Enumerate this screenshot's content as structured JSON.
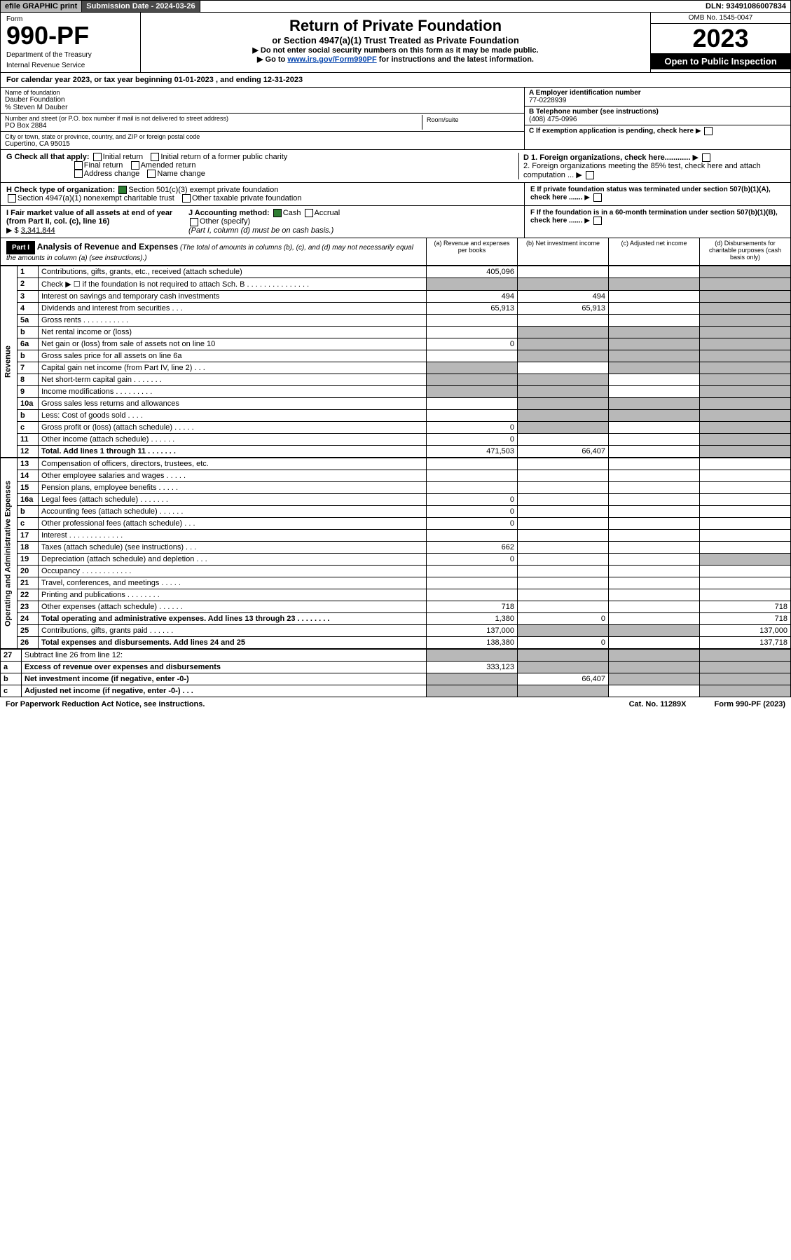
{
  "topbar": {
    "efile": "efile GRAPHIC print",
    "submission": "Submission Date - 2024-03-26",
    "dln": "DLN: 93491086007834"
  },
  "header": {
    "form_label": "Form",
    "form_code": "990-PF",
    "dept1": "Department of the Treasury",
    "dept2": "Internal Revenue Service",
    "title": "Return of Private Foundation",
    "subtitle": "or Section 4947(a)(1) Trust Treated as Private Foundation",
    "note1": "▶ Do not enter social security numbers on this form as it may be made public.",
    "note2_pre": "▶ Go to ",
    "note2_link": "www.irs.gov/Form990PF",
    "note2_post": " for instructions and the latest information.",
    "omb": "OMB No. 1545-0047",
    "year": "2023",
    "open": "Open to Public Inspection"
  },
  "calyear": "For calendar year 2023, or tax year beginning 01-01-2023                        , and ending 12-31-2023",
  "entity": {
    "name_lbl": "Name of foundation",
    "name": "Dauber Foundation",
    "care_of": "% Steven M Dauber",
    "addr_lbl": "Number and street (or P.O. box number if mail is not delivered to street address)",
    "addr": "PO Box 2884",
    "room_lbl": "Room/suite",
    "city_lbl": "City or town, state or province, country, and ZIP or foreign postal code",
    "city": "Cupertino, CA  95015",
    "a_lbl": "A Employer identification number",
    "a_val": "77-0228939",
    "b_lbl": "B Telephone number (see instructions)",
    "b_val": "(408) 475-0996",
    "c_lbl": "C If exemption application is pending, check here",
    "d1_lbl": "D 1. Foreign organizations, check here............",
    "d2_lbl": "2. Foreign organizations meeting the 85% test, check here and attach computation ...",
    "e_lbl": "E If private foundation status was terminated under section 507(b)(1)(A), check here .......",
    "f_lbl": "F If the foundation is in a 60-month termination under section 507(b)(1)(B), check here .......",
    "g_lbl": "G Check all that apply:",
    "g_initial": "Initial return",
    "g_initial_former": "Initial return of a former public charity",
    "g_final": "Final return",
    "g_amended": "Amended return",
    "g_addr": "Address change",
    "g_name": "Name change",
    "h_lbl": "H Check type of organization:",
    "h_501": "Section 501(c)(3) exempt private foundation",
    "h_4947": "Section 4947(a)(1) nonexempt charitable trust",
    "h_other": "Other taxable private foundation",
    "i_lbl": "I Fair market value of all assets at end of year (from Part II, col. (c), line 16)",
    "i_val": "3,341,844",
    "j_lbl": "J Accounting method:",
    "j_cash": "Cash",
    "j_accrual": "Accrual",
    "j_other": "Other (specify)",
    "j_note": "(Part I, column (d) must be on cash basis.)"
  },
  "part1": {
    "label": "Part I",
    "title": "Analysis of Revenue and Expenses",
    "title_note": "(The total of amounts in columns (b), (c), and (d) may not necessarily equal the amounts in column (a) (see instructions).)",
    "col_a": "(a)   Revenue and expenses per books",
    "col_b": "(b)   Net investment income",
    "col_c": "(c)   Adjusted net income",
    "col_d": "(d)   Disbursements for charitable purposes (cash basis only)"
  },
  "sections": {
    "revenue": "Revenue",
    "expenses": "Operating and Administrative Expenses"
  },
  "rows": [
    {
      "n": "1",
      "l": "Contributions, gifts, grants, etc., received (attach schedule)",
      "a": "405,096",
      "b": "",
      "c": "",
      "d": "",
      "shade_d": true
    },
    {
      "n": "2",
      "l": "Check ▶ ☐ if the foundation is not required to attach Sch. B    .   .   .   .   .   .   .   .   .   .   .   .   .   .   .",
      "a": "",
      "b": "",
      "c": "",
      "d": "",
      "shade_all": true,
      "shade_d": true
    },
    {
      "n": "3",
      "l": "Interest on savings and temporary cash investments",
      "a": "494",
      "b": "494",
      "c": "",
      "d": "",
      "shade_d": true
    },
    {
      "n": "4",
      "l": "Dividends and interest from securities    .   .   .",
      "a": "65,913",
      "b": "65,913",
      "c": "",
      "d": "",
      "shade_d": true
    },
    {
      "n": "5a",
      "l": "Gross rents    .   .   .   .   .   .   .   .   .   .   .",
      "a": "",
      "b": "",
      "c": "",
      "d": "",
      "shade_d": true
    },
    {
      "n": "b",
      "l": "Net rental income or (loss)",
      "a": "",
      "b": "",
      "c": "",
      "d": "",
      "shade_bcd": true
    },
    {
      "n": "6a",
      "l": "Net gain or (loss) from sale of assets not on line 10",
      "a": "0",
      "b": "",
      "c": "",
      "d": "",
      "shade_bcd": true
    },
    {
      "n": "b",
      "l": "Gross sales price for all assets on line 6a",
      "a": "",
      "b": "",
      "c": "",
      "d": "",
      "shade_bcd": true
    },
    {
      "n": "7",
      "l": "Capital gain net income (from Part IV, line 2)    .   .   .",
      "a": "",
      "b": "",
      "c": "",
      "d": "",
      "shade_a": true,
      "shade_cd": true
    },
    {
      "n": "8",
      "l": "Net short-term capital gain    .   .   .   .   .   .   .",
      "a": "",
      "b": "",
      "c": "",
      "d": "",
      "shade_ab": true,
      "shade_d": true
    },
    {
      "n": "9",
      "l": "Income modifications    .   .   .   .   .   .   .   .   .",
      "a": "",
      "b": "",
      "c": "",
      "d": "",
      "shade_ab": true,
      "shade_d": true
    },
    {
      "n": "10a",
      "l": "Gross sales less returns and allowances",
      "a": "",
      "b": "",
      "c": "",
      "d": "",
      "shade_bcd": true
    },
    {
      "n": "b",
      "l": "Less: Cost of goods sold    .   .   .   .",
      "a": "",
      "b": "",
      "c": "",
      "d": "",
      "shade_bcd": true
    },
    {
      "n": "c",
      "l": "Gross profit or (loss) (attach schedule)    .   .   .   .   .",
      "a": "0",
      "b": "",
      "c": "",
      "d": "",
      "shade_b": true,
      "shade_d": true
    },
    {
      "n": "11",
      "l": "Other income (attach schedule)    .   .   .   .   .   .",
      "a": "0",
      "b": "",
      "c": "",
      "d": "",
      "shade_d": true
    },
    {
      "n": "12",
      "l": "Total. Add lines 1 through 11    .   .   .   .   .   .   .",
      "a": "471,503",
      "b": "66,407",
      "c": "",
      "d": "",
      "bold": true,
      "shade_d": true
    }
  ],
  "exp_rows": [
    {
      "n": "13",
      "l": "Compensation of officers, directors, trustees, etc.",
      "a": "",
      "b": "",
      "c": "",
      "d": ""
    },
    {
      "n": "14",
      "l": "Other employee salaries and wages    .   .   .   .   .",
      "a": "",
      "b": "",
      "c": "",
      "d": ""
    },
    {
      "n": "15",
      "l": "Pension plans, employee benefits    .   .   .   .   .",
      "a": "",
      "b": "",
      "c": "",
      "d": ""
    },
    {
      "n": "16a",
      "l": "Legal fees (attach schedule)    .   .   .   .   .   .   .",
      "a": "0",
      "b": "",
      "c": "",
      "d": ""
    },
    {
      "n": "b",
      "l": "Accounting fees (attach schedule)    .   .   .   .   .   .",
      "a": "0",
      "b": "",
      "c": "",
      "d": ""
    },
    {
      "n": "c",
      "l": "Other professional fees (attach schedule)    .   .   .",
      "a": "0",
      "b": "",
      "c": "",
      "d": ""
    },
    {
      "n": "17",
      "l": "Interest    .   .   .   .   .   .   .   .   .   .   .   .   .",
      "a": "",
      "b": "",
      "c": "",
      "d": ""
    },
    {
      "n": "18",
      "l": "Taxes (attach schedule) (see instructions)    .   .   .",
      "a": "662",
      "b": "",
      "c": "",
      "d": ""
    },
    {
      "n": "19",
      "l": "Depreciation (attach schedule) and depletion    .   .   .",
      "a": "0",
      "b": "",
      "c": "",
      "d": "",
      "shade_d": true
    },
    {
      "n": "20",
      "l": "Occupancy    .   .   .   .   .   .   .   .   .   .   .   .",
      "a": "",
      "b": "",
      "c": "",
      "d": ""
    },
    {
      "n": "21",
      "l": "Travel, conferences, and meetings    .   .   .   .   .",
      "a": "",
      "b": "",
      "c": "",
      "d": ""
    },
    {
      "n": "22",
      "l": "Printing and publications    .   .   .   .   .   .   .   .",
      "a": "",
      "b": "",
      "c": "",
      "d": ""
    },
    {
      "n": "23",
      "l": "Other expenses (attach schedule)    .   .   .   .   .   .",
      "a": "718",
      "b": "",
      "c": "",
      "d": "718"
    },
    {
      "n": "24",
      "l": "Total operating and administrative expenses. Add lines 13 through 23    .   .   .   .   .   .   .   .",
      "a": "1,380",
      "b": "0",
      "c": "",
      "d": "718",
      "bold": true
    },
    {
      "n": "25",
      "l": "Contributions, gifts, grants paid    .   .   .   .   .   .",
      "a": "137,000",
      "b": "",
      "c": "",
      "d": "137,000",
      "shade_bc": true
    },
    {
      "n": "26",
      "l": "Total expenses and disbursements. Add lines 24 and 25",
      "a": "138,380",
      "b": "0",
      "c": "",
      "d": "137,718",
      "bold": true
    }
  ],
  "sub_rows": [
    {
      "n": "27",
      "l": "Subtract line 26 from line 12:",
      "a": "",
      "b": "",
      "c": "",
      "d": "",
      "shade_all": true
    },
    {
      "n": "a",
      "l": "Excess of revenue over expenses and disbursements",
      "a": "333,123",
      "b": "",
      "c": "",
      "d": "",
      "bold": true,
      "shade_bcd": true
    },
    {
      "n": "b",
      "l": "Net investment income (if negative, enter -0-)",
      "a": "",
      "b": "66,407",
      "c": "",
      "d": "",
      "bold": true,
      "shade_a": true,
      "shade_cd": true
    },
    {
      "n": "c",
      "l": "Adjusted net income (if negative, enter -0-)    .   .   .",
      "a": "",
      "b": "",
      "c": "",
      "d": "",
      "bold": true,
      "shade_ab": true,
      "shade_d": true
    }
  ],
  "footer": {
    "left": "For Paperwork Reduction Act Notice, see instructions.",
    "mid": "Cat. No. 11289X",
    "right": "Form 990-PF (2023)"
  }
}
